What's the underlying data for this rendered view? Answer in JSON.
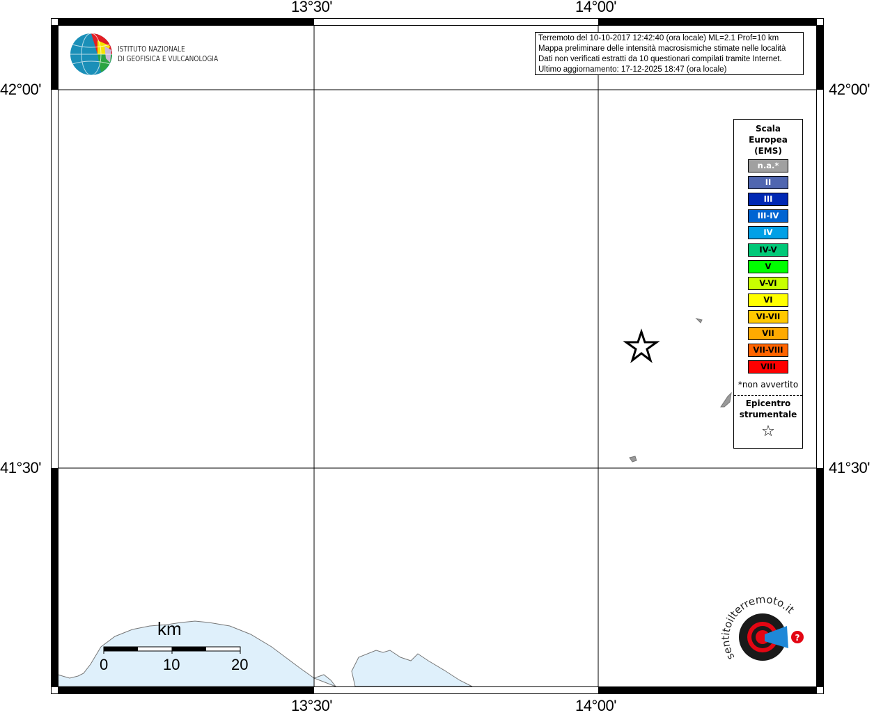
{
  "info_box": {
    "lines": [
      "Terremoto del 10-10-2017 12:42:40 (ora locale) ML=2.1 Prof=10 km",
      "Mappa preliminare delle intensità macrosismiche stimate nelle località",
      "Dati non verificati estratti da 10 questionari compilati tramite Internet.",
      "Ultimo aggiornamento: 17-12-2025 18:47 (ora locale)"
    ]
  },
  "logo": {
    "ingv_line1": "ISTITUTO NAZIONALE",
    "ingv_line2": "DI GEOFISICA E VULCANOLOGIA",
    "hsit": "www.haisentitoilterremoto.it"
  },
  "axes": {
    "lon_ticks": [
      "13°30'",
      "14°00'"
    ],
    "lat_ticks": [
      "42°00'",
      "41°30'"
    ]
  },
  "legend": {
    "title": [
      "Scala",
      "Europea",
      "(EMS)"
    ],
    "levels": [
      {
        "label": "n.a.*",
        "color": "#a0a0a0",
        "text": "#ffffff"
      },
      {
        "label": "II",
        "color": "#5066b0",
        "text": "#ffffff"
      },
      {
        "label": "III",
        "color": "#0028b4",
        "text": "#ffffff"
      },
      {
        "label": "III-IV",
        "color": "#0064d2",
        "text": "#ffffff"
      },
      {
        "label": "IV",
        "color": "#00a0e6",
        "text": "#ffffff"
      },
      {
        "label": "IV-V",
        "color": "#00c878",
        "text": "#000000"
      },
      {
        "label": "V",
        "color": "#00ff00",
        "text": "#000000"
      },
      {
        "label": "V-VI",
        "color": "#c8ff00",
        "text": "#000000"
      },
      {
        "label": "VI",
        "color": "#ffff00",
        "text": "#000000"
      },
      {
        "label": "VI-VII",
        "color": "#ffc800",
        "text": "#000000"
      },
      {
        "label": "VII",
        "color": "#ffaa00",
        "text": "#000000"
      },
      {
        "label": "VII-VIII",
        "color": "#ff6400",
        "text": "#000000"
      },
      {
        "label": "VIII",
        "color": "#ff0000",
        "text": "#000000"
      }
    ],
    "not_felt_note": "*non avvertito",
    "epicenter_label": [
      "Epicentro",
      "strumentale"
    ],
    "epicenter_symbol": "☆"
  },
  "scale_bar": {
    "unit": "km",
    "labels": [
      "0",
      "10",
      "20"
    ]
  },
  "colors": {
    "sea": "#dff0fb",
    "coast": "#777777"
  }
}
